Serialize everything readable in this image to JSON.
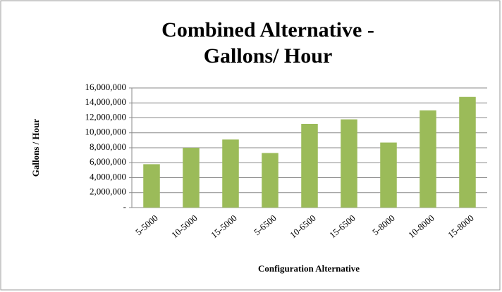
{
  "chart_data": {
    "type": "bar",
    "title": "Combined Alternative - Gallons/ Hour",
    "x_label": "Configuration Alternative",
    "y_label": "Gallons / Hour",
    "categories": [
      "5-5000",
      "10-5000",
      "15-5000",
      "5-6500",
      "10-6500",
      "15-6500",
      "5-8000",
      "10-8000",
      "15-8000"
    ],
    "values": [
      5800000,
      8000000,
      9100000,
      7300000,
      11200000,
      11800000,
      8700000,
      13000000,
      14800000
    ],
    "color": "#9bbb59",
    "ylim": [
      0,
      16000000
    ],
    "yticks": [
      {
        "value": 0,
        "label": "-"
      },
      {
        "value": 2000000,
        "label": "2,000,000"
      },
      {
        "value": 4000000,
        "label": "4,000,000"
      },
      {
        "value": 6000000,
        "label": "6,000,000"
      },
      {
        "value": 8000000,
        "label": "8,000,000"
      },
      {
        "value": 10000000,
        "label": "10,000,000"
      },
      {
        "value": 12000000,
        "label": "12,000,000"
      },
      {
        "value": 14000000,
        "label": "14,000,000"
      },
      {
        "value": 16000000,
        "label": "16,000,000"
      }
    ],
    "grid": true
  }
}
